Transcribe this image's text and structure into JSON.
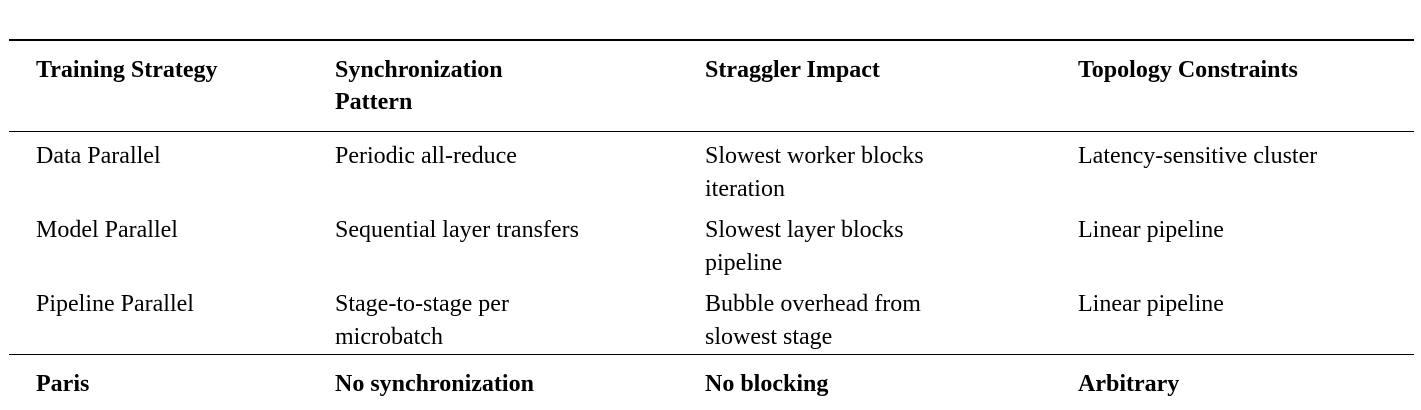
{
  "table": {
    "headers": [
      "Training Strategy",
      "Synchronization Pattern",
      "Straggler Impact",
      "Topology Constraints"
    ],
    "rows": [
      [
        "Data Parallel",
        "Periodic all-reduce",
        "Slowest worker blocks iteration",
        "Latency-sensitive cluster"
      ],
      [
        "Model Parallel",
        "Sequential layer transfers",
        "Slowest layer blocks pipeline",
        "Linear pipeline"
      ],
      [
        "Pipeline Parallel",
        "Stage-to-stage per microbatch",
        "Bubble overhead from slowest stage",
        "Linear pipeline"
      ]
    ],
    "highlight": [
      "Paris",
      "No synchronization",
      "No blocking",
      "Arbitrary"
    ],
    "colors": {
      "text": "#000000",
      "rule": "#000000",
      "background": "#ffffff"
    }
  }
}
